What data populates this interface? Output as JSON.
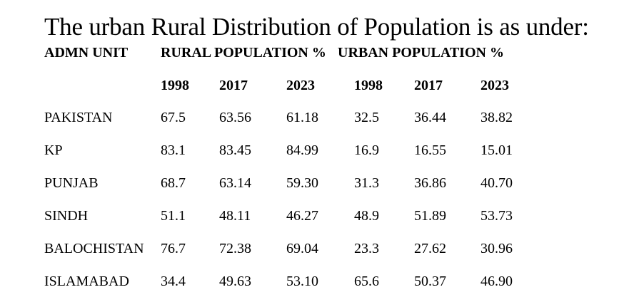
{
  "title": "The urban Rural Distribution of Population is as under:",
  "headers": {
    "admn_unit": "ADMN UNIT",
    "rural": "RURAL POPULATION %",
    "urban": "URBAN POPULATION %"
  },
  "years": [
    "1998",
    "2017",
    "2023",
    "1998",
    "2017",
    "2023"
  ],
  "rows": [
    {
      "unit": "PAKISTAN",
      "values": [
        "67.5",
        "63.56",
        "61.18",
        "32.5",
        "36.44",
        "38.82"
      ]
    },
    {
      "unit": "KP",
      "values": [
        "83.1",
        "83.45",
        "84.99",
        "16.9",
        "16.55",
        "15.01"
      ]
    },
    {
      "unit": "PUNJAB",
      "values": [
        "68.7",
        "63.14",
        "59.30",
        "31.3",
        "36.86",
        "40.70"
      ]
    },
    {
      "unit": "SINDH",
      "values": [
        "51.1",
        "48.11",
        "46.27",
        "48.9",
        "51.89",
        "53.73"
      ]
    },
    {
      "unit": "BALOCHISTAN",
      "values": [
        "76.7",
        "72.38",
        "69.04",
        "23.3",
        "27.62",
        "30.96"
      ]
    },
    {
      "unit": "ISLAMABAD",
      "values": [
        "34.4",
        "49.63",
        "53.10",
        "65.6",
        "50.37",
        "46.90"
      ]
    }
  ]
}
